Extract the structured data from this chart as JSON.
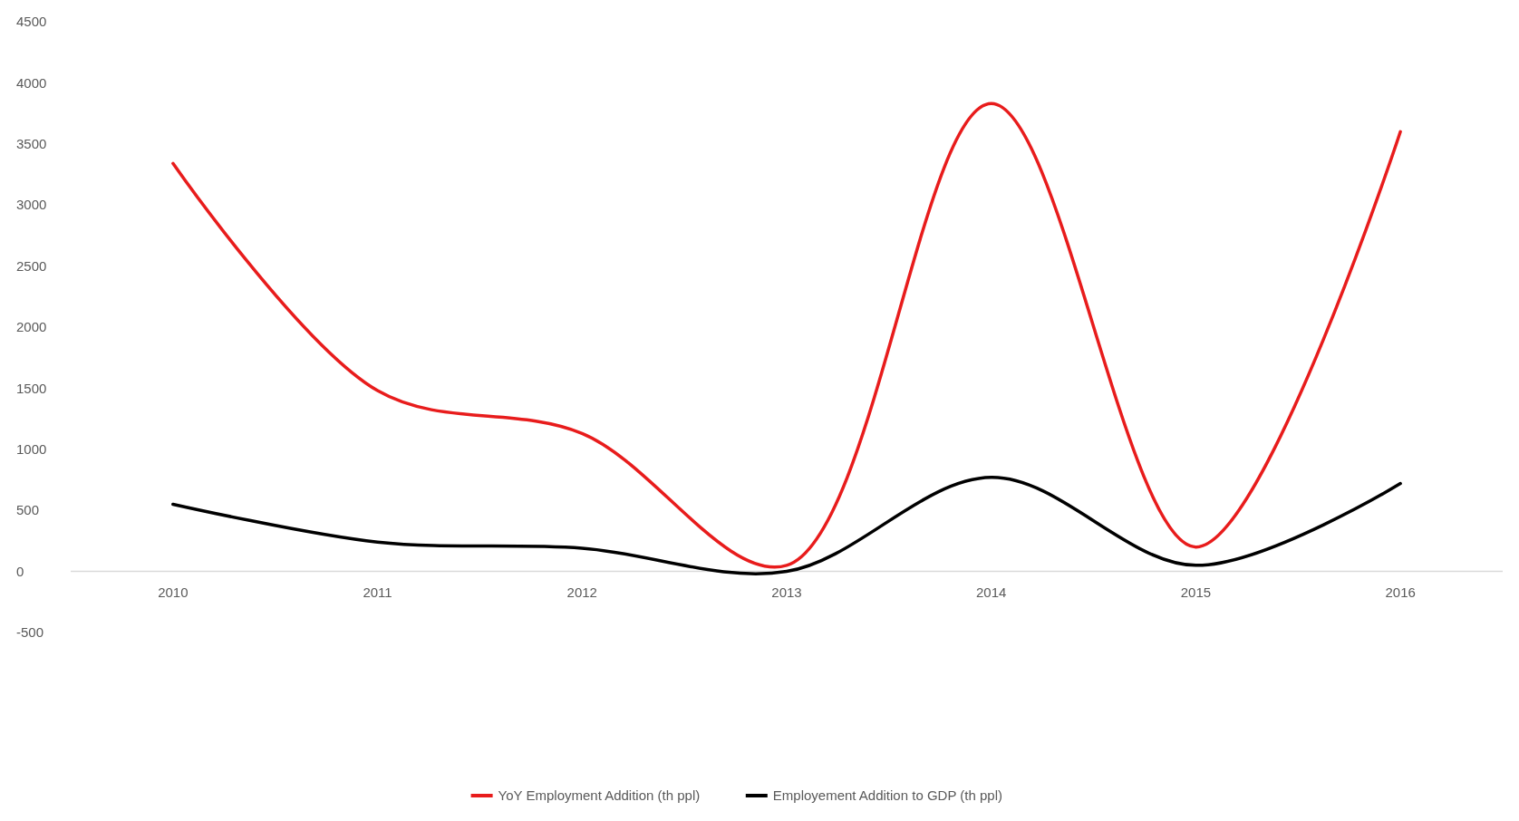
{
  "chart_data": {
    "type": "line",
    "categories": [
      "2010",
      "2011",
      "2012",
      "2013",
      "2014",
      "2015",
      "2016"
    ],
    "series": [
      {
        "name": "YoY Employment Addition (th ppl)",
        "color": "#e81c1c",
        "values": [
          3340,
          1480,
          1130,
          50,
          3830,
          200,
          3600
        ]
      },
      {
        "name": "Employement Addition to GDP (th ppl)",
        "color": "#000000",
        "values": [
          550,
          240,
          190,
          0,
          770,
          50,
          720
        ]
      }
    ],
    "ylim": [
      -500,
      4500
    ],
    "yticks": [
      -500,
      0,
      500,
      1000,
      1500,
      2000,
      2500,
      3000,
      3500,
      4000,
      4500
    ],
    "grid": false,
    "legend": "bottom",
    "marker": "none",
    "line_style": "solid"
  }
}
